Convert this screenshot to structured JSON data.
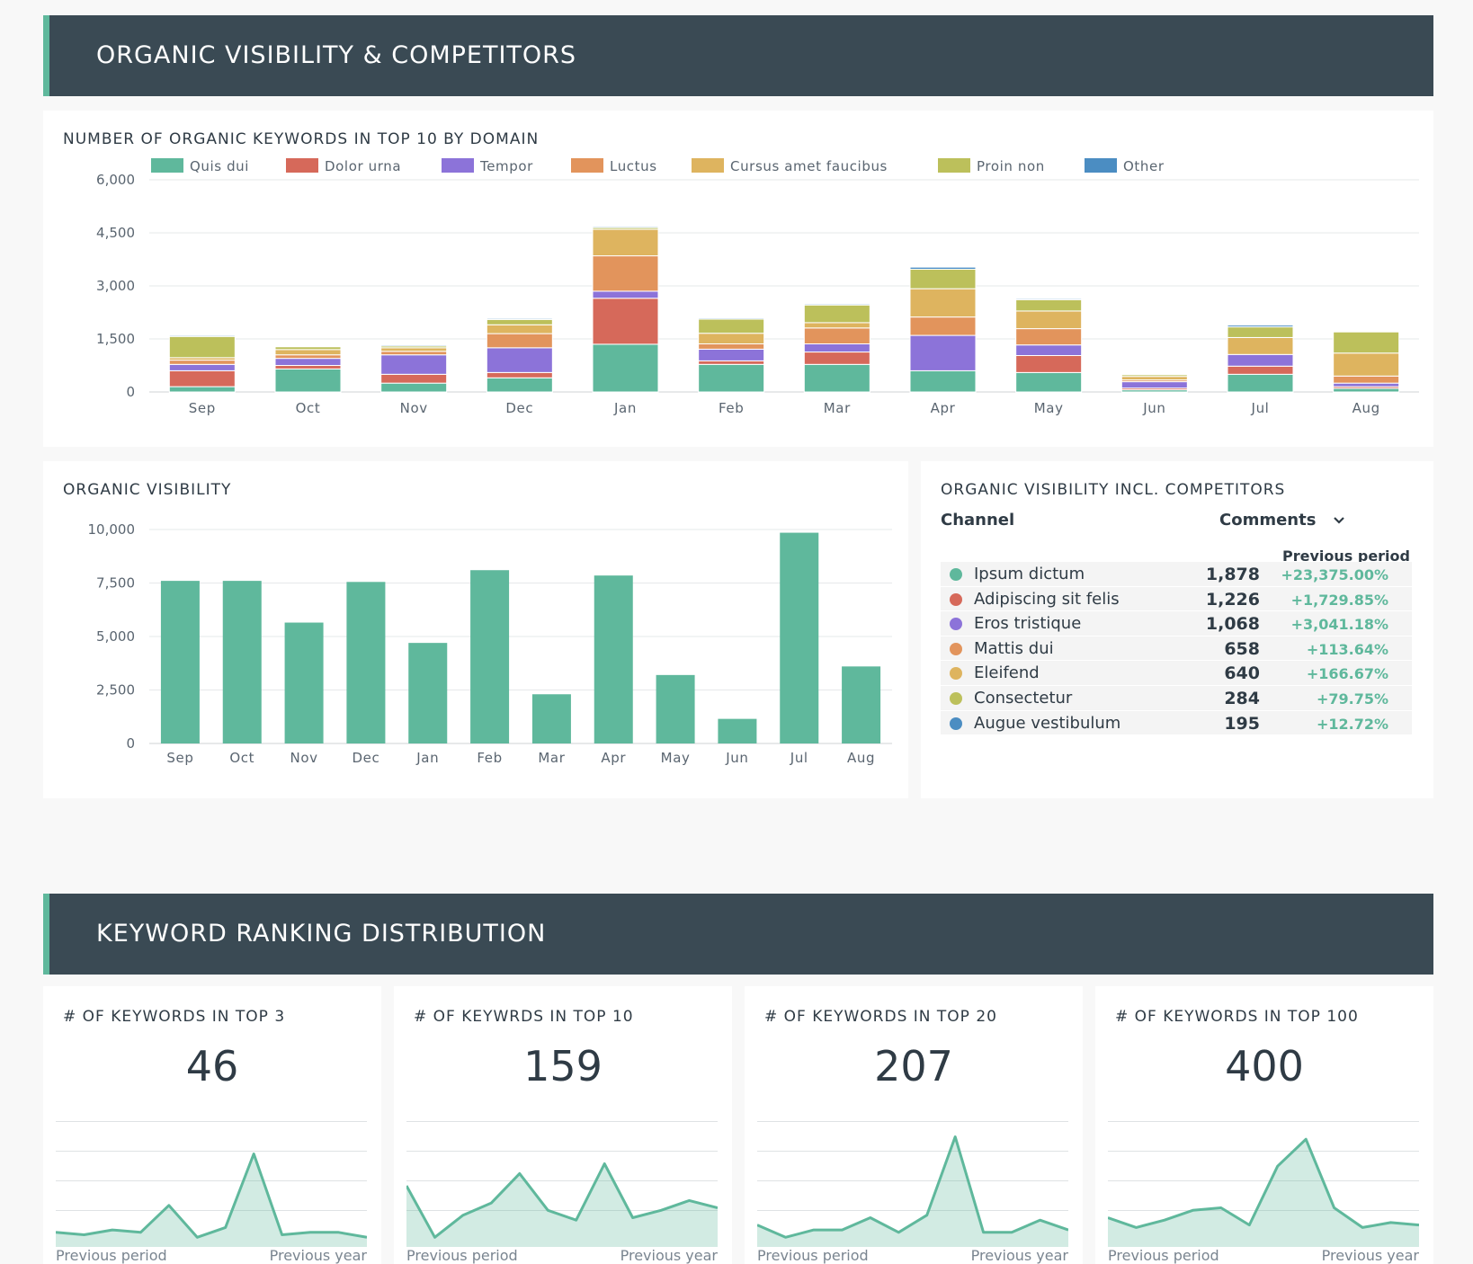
{
  "section1": {
    "title": "ORGANIC VISIBILITY & COMPETITORS"
  },
  "section2": {
    "title": "KEYWORD RANKING DISTRIBUTION"
  },
  "keywords_chart": {
    "title": "NUMBER OF ORGANIC KEYWORDS IN TOP 10 BY DOMAIN",
    "colors": [
      "#5fb89c",
      "#d6695a",
      "#8c73d9",
      "#e2945c",
      "#deb45f",
      "#bcc05b",
      "#4b8dc2"
    ]
  },
  "visibility_chart": {
    "title": "ORGANIC VISIBILITY",
    "color": "#5fb89c"
  },
  "competitors": {
    "title": "ORGANIC VISIBILITY INCL. COMPETITORS",
    "col_channel": "Channel",
    "col_comments": "Comments",
    "col_prev": "Previous period",
    "rows": [
      {
        "name": "Ipsum dictum",
        "value": "1,878",
        "change": "+23,375.00%",
        "color": "#5fb89c"
      },
      {
        "name": "Adipiscing sit felis",
        "value": "1,226",
        "change": "+1,729.85%",
        "color": "#d6695a"
      },
      {
        "name": "Eros tristique",
        "value": "1,068",
        "change": "+3,041.18%",
        "color": "#8c73d9"
      },
      {
        "name": "Mattis dui",
        "value": "658",
        "change": "+113.64%",
        "color": "#e2945c"
      },
      {
        "name": "Eleifend",
        "value": "640",
        "change": "+166.67%",
        "color": "#deb45f"
      },
      {
        "name": "Consectetur",
        "value": "284",
        "change": "+79.75%",
        "color": "#bcc05b"
      },
      {
        "name": "Augue vestibulum",
        "value": "195",
        "change": "+12.72%",
        "color": "#4b8dc2"
      }
    ]
  },
  "kpis": [
    {
      "title": "# OF KEYWORDS IN TOP 3",
      "value": "46",
      "foot_left": "Previous period",
      "foot_right": "Previous year",
      "spark": [
        3,
        2,
        4,
        3,
        14,
        1,
        5,
        35,
        2,
        3,
        3,
        1
      ]
    },
    {
      "title": "# OF KEYWRDS IN TOP 10",
      "value": "159",
      "foot_left": "Previous period",
      "foot_right": "Previous year",
      "spark": [
        22,
        1,
        10,
        15,
        27,
        12,
        8,
        31,
        9,
        12,
        16,
        13
      ]
    },
    {
      "title": "# OF KEYWORDS IN TOP 20",
      "value": "207",
      "foot_left": "Previous period",
      "foot_right": "Previous year",
      "spark": [
        6,
        1,
        4,
        4,
        9,
        3,
        10,
        42,
        3,
        3,
        8,
        4
      ]
    },
    {
      "title": "# OF KEYWORDS IN TOP 100",
      "value": "400",
      "foot_left": "Previous period",
      "foot_right": "Previous year",
      "spark": [
        9,
        5,
        8,
        12,
        13,
        6,
        30,
        41,
        13,
        5,
        7,
        6
      ]
    }
  ],
  "chart_data": [
    {
      "type": "bar",
      "stacked": true,
      "title": "NUMBER OF ORGANIC KEYWORDS IN TOP 10 BY DOMAIN",
      "categories": [
        "Sep",
        "Oct",
        "Nov",
        "Dec",
        "Jan",
        "Feb",
        "Mar",
        "Apr",
        "May",
        "Jun",
        "Jul",
        "Aug"
      ],
      "ylim": [
        0,
        6000
      ],
      "yticks": [
        0,
        1500,
        3000,
        4500,
        6000
      ],
      "ytick_labels": [
        "0",
        "1,500",
        "3,000",
        "4,500",
        "6,000"
      ],
      "legend_position": "top",
      "grid": true,
      "series": [
        {
          "name": "Quis dui",
          "values": [
            150,
            650,
            250,
            400,
            1350,
            780,
            780,
            600,
            550,
            60,
            500,
            100
          ]
        },
        {
          "name": "Dolor urna",
          "values": [
            450,
            100,
            250,
            150,
            1300,
            100,
            350,
            0,
            480,
            50,
            230,
            50
          ]
        },
        {
          "name": "Tempor",
          "values": [
            180,
            200,
            550,
            700,
            200,
            330,
            230,
            1000,
            300,
            180,
            330,
            100
          ]
        },
        {
          "name": "Luctus",
          "values": [
            120,
            100,
            100,
            400,
            1000,
            150,
            450,
            520,
            460,
            50,
            0,
            200
          ]
        },
        {
          "name": "Cursus amet faucibus",
          "values": [
            70,
            150,
            100,
            250,
            750,
            300,
            150,
            800,
            500,
            100,
            480,
            650
          ]
        },
        {
          "name": "Proin non",
          "values": [
            600,
            80,
            50,
            150,
            50,
            400,
            500,
            550,
            320,
            50,
            300,
            600
          ]
        },
        {
          "name": "Other",
          "values": [
            30,
            20,
            30,
            30,
            30,
            30,
            30,
            60,
            30,
            20,
            50,
            10
          ]
        }
      ]
    },
    {
      "type": "bar",
      "title": "ORGANIC VISIBILITY",
      "categories": [
        "Sep",
        "Oct",
        "Nov",
        "Dec",
        "Jan",
        "Feb",
        "Mar",
        "Apr",
        "May",
        "Jun",
        "Jul",
        "Aug"
      ],
      "values": [
        7600,
        7600,
        5650,
        7550,
        4700,
        8100,
        2300,
        7850,
        3200,
        1150,
        9850,
        3600
      ],
      "ylim": [
        0,
        10000
      ],
      "yticks": [
        0,
        2500,
        5000,
        7500,
        10000
      ],
      "ytick_labels": [
        "0",
        "2,500",
        "5,000",
        "7,500",
        "10,000"
      ],
      "grid": true
    }
  ]
}
